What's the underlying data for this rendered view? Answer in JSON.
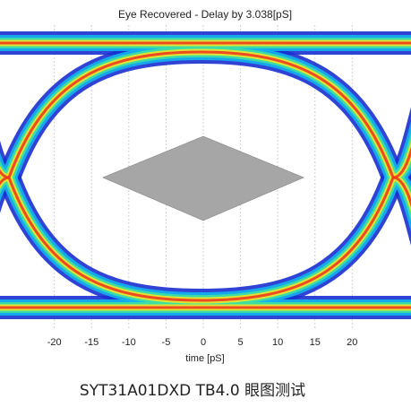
{
  "chart_data": {
    "type": "eye",
    "title": "Eye Recovered - Delay by 3.038[pS]",
    "xlabel": "time [pS]",
    "xlim": [
      -27.3,
      27.9
    ],
    "xticks": [
      -20,
      -15,
      -10,
      -5,
      0,
      5,
      10,
      15,
      20
    ],
    "grid": true,
    "mask_x": [
      -13.5,
      0,
      13.5,
      0
    ],
    "mask_color": "#a6a6a6",
    "caption": "SYT31A01DXD  TB4.0 眼图测试"
  }
}
